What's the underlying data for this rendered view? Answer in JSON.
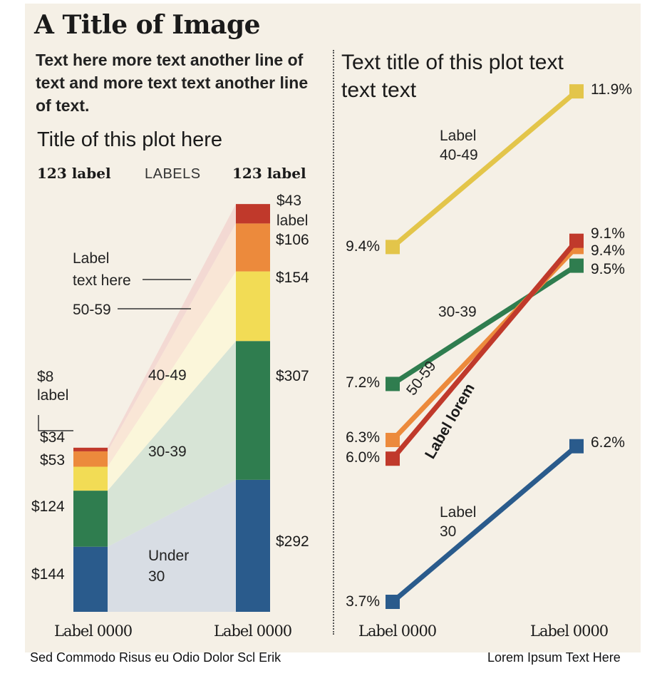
{
  "header": {
    "title": "A Title of Image",
    "intro": "Text here more text another line of text and more text text another line of text."
  },
  "left_plot": {
    "title": "Title of this plot here",
    "left_header": "123 label",
    "mid_header": "LABELS",
    "right_header": "123 label",
    "annot_label_text": "Label\ntext here",
    "annot_5059": "50-59",
    "annot_8": "$8\nlabel",
    "annot_43": "$43\nlabel",
    "band_labels": {
      "b4049": "40-49",
      "b3039": "30-39",
      "under30": "Under\n30"
    },
    "x_labels": [
      "Label 0000",
      "Label 0000"
    ]
  },
  "right_plot": {
    "title": "Text title of this plot text text text",
    "x_labels": [
      "Label 0000",
      "Label 0000"
    ],
    "series_labels": {
      "s4049": "Label\n40-49",
      "s3039": "30-39",
      "s5059": "50-59",
      "slorem": "Label lorem",
      "sunder30": "Label\n30"
    }
  },
  "footer": {
    "left": "Sed Commodo Risus eu Odio Dolor Scl Erik",
    "right": "Lorem Ipsum Text Here"
  },
  "colors": {
    "background": "#f5f0e6",
    "under30": "#2a5b8c",
    "g30_39": "#2f7d4f",
    "g40_49": "#f2dc55",
    "g50_59": "#ec8a3c",
    "g60plus": "#c0392b",
    "line4049": "#e3c54a"
  },
  "chart_data": [
    {
      "type": "bar",
      "stacked": true,
      "categories": [
        "Label 0000",
        "Label 0000"
      ],
      "series": [
        {
          "values": [
            144,
            292
          ]
        },
        {
          "values": [
            124,
            307
          ]
        },
        {
          "values": [
            53,
            154
          ]
        },
        {
          "values": [
            34,
            106
          ]
        },
        {
          "values": [
            8,
            43
          ]
        }
      ],
      "value_labels": [
        [
          "$144",
          "$124",
          "$53",
          "$34",
          "$8"
        ],
        [
          "$292",
          "$307",
          "$154",
          "$106",
          "$43"
        ]
      ]
    },
    {
      "type": "line",
      "categories": [
        "Label 0000",
        "Label 0000"
      ],
      "series": [
        {
          "name": "40-49",
          "values": [
            9.4,
            11.9
          ],
          "labels": [
            "9.4%",
            "11.9%"
          ]
        },
        {
          "name": "30-39",
          "values": [
            7.2,
            9.1
          ],
          "labels": [
            "7.2%",
            "9.1%"
          ]
        },
        {
          "name": "50-59",
          "values": [
            6.3,
            9.4
          ],
          "labels": [
            "6.3%",
            "9.4%"
          ]
        },
        {
          "name": "Label lorem",
          "values": [
            6.0,
            9.5
          ],
          "labels": [
            "6.0%",
            "9.5%"
          ]
        },
        {
          "name": "30",
          "values": [
            3.7,
            6.2
          ],
          "labels": [
            "3.7%",
            "6.2%"
          ]
        }
      ]
    }
  ]
}
